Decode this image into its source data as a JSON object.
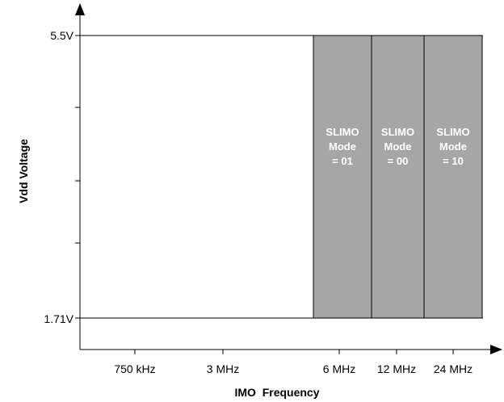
{
  "chart_data": {
    "type": "bar",
    "xlabel": "IMO  Frequency",
    "ylabel": "Vdd Voltage",
    "x_ticks": [
      "750 kHz",
      "3 MHz",
      "6 MHz",
      "12 MHz",
      "24 MHz"
    ],
    "y_ticks": [
      "5.5V",
      "1.71V"
    ],
    "ylim": [
      1.71,
      5.5
    ],
    "grid": false,
    "legend": "none",
    "series": [
      {
        "categories": [
          "6 MHz",
          "12 MHz",
          "24 MHz"
        ],
        "y_range": [
          1.71,
          5.5
        ],
        "labels": [
          [
            "SLIMO",
            "Mode",
            "= 01"
          ],
          [
            "SLIMO",
            "Mode",
            "= 00"
          ],
          [
            "SLIMO",
            "Mode",
            "= 10"
          ]
        ],
        "color": "#a6a6a6"
      }
    ],
    "label_color": "#ffffff"
  }
}
